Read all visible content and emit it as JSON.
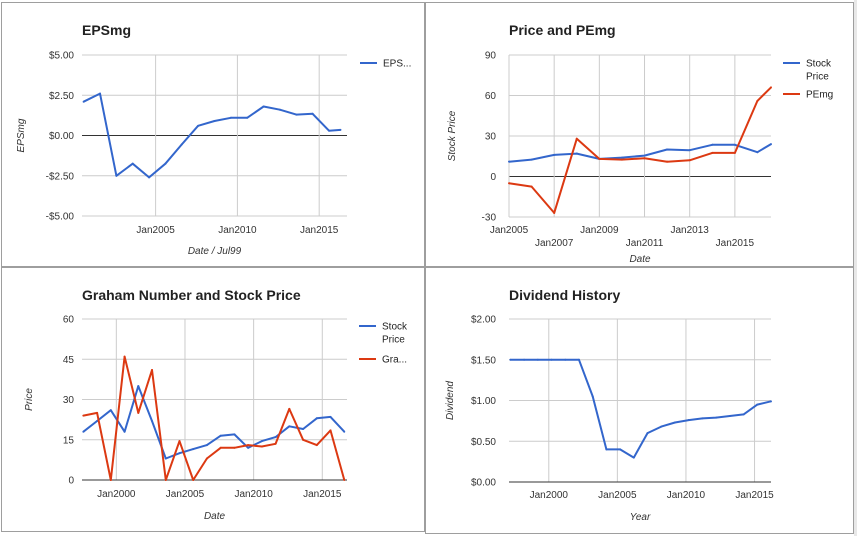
{
  "chart_data": [
    {
      "id": "eps",
      "type": "line",
      "title": "EPSmg",
      "xlabel": "Date / Jul99",
      "ylabel": "EPSmg",
      "x_ticks": [
        2005,
        2010,
        2015
      ],
      "x_tick_labels": [
        "Jan2005",
        "Jan2010",
        "Jan2015"
      ],
      "y_ticks": [
        -5,
        -2.5,
        0,
        2.5,
        5
      ],
      "y_tick_labels": [
        "-$5.00",
        "-$2.50",
        "$0.00",
        "$2.50",
        "$5.00"
      ],
      "xlim": [
        2000.5,
        2016.7
      ],
      "ylim": [
        -5,
        5
      ],
      "legend": "right",
      "grid": true,
      "series": [
        {
          "name": "EPS...",
          "color": "#3366cc",
          "x": [
            2000.6,
            2001.6,
            2002.6,
            2003.6,
            2004.6,
            2005.6,
            2006.6,
            2007.6,
            2008.6,
            2009.6,
            2010.6,
            2011.6,
            2012.6,
            2013.6,
            2014.6,
            2015.6,
            2016.3
          ],
          "y": [
            2.1,
            2.6,
            -2.5,
            -1.75,
            -2.6,
            -1.75,
            -0.55,
            0.6,
            0.9,
            1.1,
            1.1,
            1.8,
            1.6,
            1.3,
            1.35,
            0.3,
            0.35
          ]
        }
      ]
    },
    {
      "id": "price-pe",
      "type": "line",
      "title": "Price and PEmg",
      "xlabel": "Date",
      "ylabel": "Stock Price",
      "x_ticks": [
        2005,
        2007,
        2009,
        2011,
        2013,
        2015
      ],
      "x_tick_labels": [
        "Jan2005",
        "Jan2007",
        "Jan2009",
        "Jan2011",
        "Jan2013",
        "Jan2015"
      ],
      "y_ticks": [
        -30,
        0,
        30,
        60,
        90
      ],
      "y_tick_labels": [
        "-30",
        "0",
        "30",
        "60",
        "90"
      ],
      "xlim": [
        2005,
        2016.6
      ],
      "ylim": [
        -30,
        90
      ],
      "legend": "right",
      "grid": true,
      "series": [
        {
          "name": "Stock Price",
          "color": "#3366cc",
          "x": [
            2005,
            2006,
            2007,
            2008,
            2009,
            2010,
            2011,
            2012,
            2013,
            2014,
            2015,
            2016,
            2016.6
          ],
          "y": [
            11,
            12.5,
            16,
            17,
            13,
            14,
            15.5,
            20,
            19.5,
            23.5,
            23.5,
            18,
            24
          ]
        },
        {
          "name": "PEmg",
          "color": "#dc3912",
          "x": [
            2005,
            2006,
            2007,
            2008,
            2009,
            2010,
            2011,
            2012,
            2013,
            2014,
            2015,
            2016,
            2016.6
          ],
          "y": [
            -5,
            -7.5,
            -27,
            28,
            13,
            12.5,
            13.5,
            11,
            12,
            17.5,
            17.5,
            56,
            66
          ]
        }
      ]
    },
    {
      "id": "graham",
      "type": "line",
      "title": "Graham Number and Stock Price",
      "xlabel": "Date",
      "ylabel": "Price",
      "x_ticks": [
        2000,
        2005,
        2010,
        2015
      ],
      "x_tick_labels": [
        "Jan2000",
        "Jan2005",
        "Jan2010",
        "Jan2015"
      ],
      "y_ticks": [
        0,
        15,
        30,
        45,
        60
      ],
      "y_tick_labels": [
        "0",
        "15",
        "30",
        "45",
        "60"
      ],
      "xlim": [
        1997.5,
        2016.8
      ],
      "ylim": [
        0,
        60
      ],
      "legend": "right",
      "grid": true,
      "series": [
        {
          "name": "Stock Price",
          "color": "#3366cc",
          "x": [
            1997.6,
            1998.6,
            1999.6,
            2000.6,
            2001.6,
            2002.6,
            2003.6,
            2004.6,
            2005.6,
            2006.6,
            2007.6,
            2008.6,
            2009.6,
            2010.6,
            2011.6,
            2012.6,
            2013.6,
            2014.6,
            2015.6,
            2016.6
          ],
          "y": [
            18,
            22,
            26,
            18,
            35,
            22,
            8,
            10,
            11.5,
            13,
            16.5,
            17,
            12,
            14.5,
            16,
            20,
            19,
            23,
            23.5,
            18
          ]
        },
        {
          "name": "Gra...",
          "color": "#dc3912",
          "x": [
            1997.6,
            1998.6,
            1999.6,
            2000.6,
            2001.6,
            2002.6,
            2003.6,
            2004.6,
            2005.6,
            2006.6,
            2007.6,
            2008.6,
            2009.6,
            2010.6,
            2011.6,
            2012.6,
            2013.6,
            2014.6,
            2015.6,
            2016.6
          ],
          "y": [
            24,
            25,
            0,
            46,
            25,
            41,
            0,
            14.5,
            0,
            8,
            12,
            12,
            13,
            12.5,
            13.5,
            26.5,
            15,
            13,
            18.5,
            0
          ]
        }
      ]
    },
    {
      "id": "dividend",
      "type": "line",
      "title": "Dividend History",
      "xlabel": "Year",
      "ylabel": "Dividend",
      "x_ticks": [
        2000,
        2005,
        2010,
        2015
      ],
      "x_tick_labels": [
        "Jan2000",
        "Jan2005",
        "Jan2010",
        "Jan2015"
      ],
      "y_ticks": [
        0,
        0.5,
        1,
        1.5,
        2
      ],
      "y_tick_labels": [
        "$0.00",
        "$0.50",
        "$1.00",
        "$1.50",
        "$2.00"
      ],
      "xlim": [
        1997.1,
        2016.2
      ],
      "ylim": [
        0,
        2
      ],
      "legend": "none",
      "grid": true,
      "series": [
        {
          "name": "",
          "color": "#3366cc",
          "x": [
            1997.2,
            1998.2,
            1999.2,
            2000.2,
            2001.2,
            2002.2,
            2003.2,
            2004.2,
            2005.2,
            2006.2,
            2007.2,
            2008.2,
            2009.2,
            2010.2,
            2011.2,
            2012.2,
            2013.2,
            2014.2,
            2015.2,
            2016.2
          ],
          "y": [
            1.5,
            1.5,
            1.5,
            1.5,
            1.5,
            1.5,
            1.05,
            0.4,
            0.4,
            0.3,
            0.6,
            0.68,
            0.73,
            0.76,
            0.78,
            0.79,
            0.81,
            0.83,
            0.95,
            0.99
          ]
        }
      ]
    }
  ]
}
